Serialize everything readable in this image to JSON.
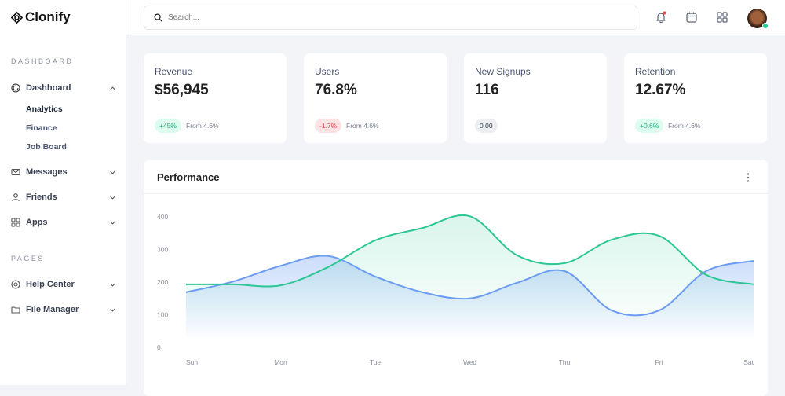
{
  "brand": {
    "name": "Clonify"
  },
  "sidebar": {
    "sections": [
      {
        "label": "DASHBOARD"
      },
      {
        "label": "PAGES"
      }
    ],
    "items": [
      {
        "label": "Dashboard",
        "icon": "dashboard-icon",
        "expanded": true,
        "children": [
          {
            "label": "Analytics",
            "active": true
          },
          {
            "label": "Finance"
          },
          {
            "label": "Job Board"
          }
        ]
      },
      {
        "label": "Messages",
        "icon": "mail-icon"
      },
      {
        "label": "Friends",
        "icon": "user-icon"
      },
      {
        "label": "Apps",
        "icon": "grid-icon"
      },
      {
        "label": "Help Center",
        "icon": "lifebuoy-icon"
      },
      {
        "label": "File Manager",
        "icon": "folder-icon"
      }
    ]
  },
  "topbar": {
    "search_placeholder": "Search...",
    "icons": [
      "bell-icon",
      "calendar-icon",
      "apps-grid-icon"
    ],
    "notification_color": "#ef4444"
  },
  "stats": [
    {
      "label": "Revenue",
      "value": "$56,945",
      "badge": "+45%",
      "badge_type": "up",
      "from": "From 4.6%"
    },
    {
      "label": "Users",
      "value": "76.8%",
      "badge": "-1.7%",
      "badge_type": "down",
      "from": "From 4.6%"
    },
    {
      "label": "New Signups",
      "value": "116",
      "badge": "0.00",
      "badge_type": "neutral",
      "from": ""
    },
    {
      "label": "Retention",
      "value": "12.67%",
      "badge": "+0.6%",
      "badge_type": "up",
      "from": "From 4.6%"
    }
  ],
  "colors": {
    "up_bg": "#dcfcef",
    "up_fg": "#1bb37a",
    "down_bg": "#fde2e4",
    "down_fg": "#e5484d",
    "neutral_bg": "#eceef2",
    "neutral_fg": "#374151",
    "blue": "#6b9cf2",
    "green": "#2cc794"
  },
  "performance": {
    "title": "Performance"
  },
  "chart_data": {
    "type": "area",
    "categories": [
      "Sun",
      "Mon",
      "Tue",
      "Wed",
      "Thu",
      "Fri",
      "Sat"
    ],
    "x": [
      0,
      0.5,
      1,
      1.5,
      2,
      2.5,
      3,
      3.5,
      4,
      4.5,
      5,
      5.5,
      6
    ],
    "yticks": [
      0,
      100,
      200,
      300,
      400
    ],
    "ylim": [
      0,
      400
    ],
    "grid": false,
    "series": [
      {
        "color": "#6b9cf2",
        "values": [
          169,
          202,
          250,
          280,
          217,
          169,
          150,
          198,
          234,
          113,
          113,
          234,
          265
        ]
      },
      {
        "color": "#2cc794",
        "values": [
          193,
          193,
          190,
          246,
          328,
          366,
          402,
          282,
          258,
          330,
          342,
          222,
          193
        ]
      }
    ]
  }
}
